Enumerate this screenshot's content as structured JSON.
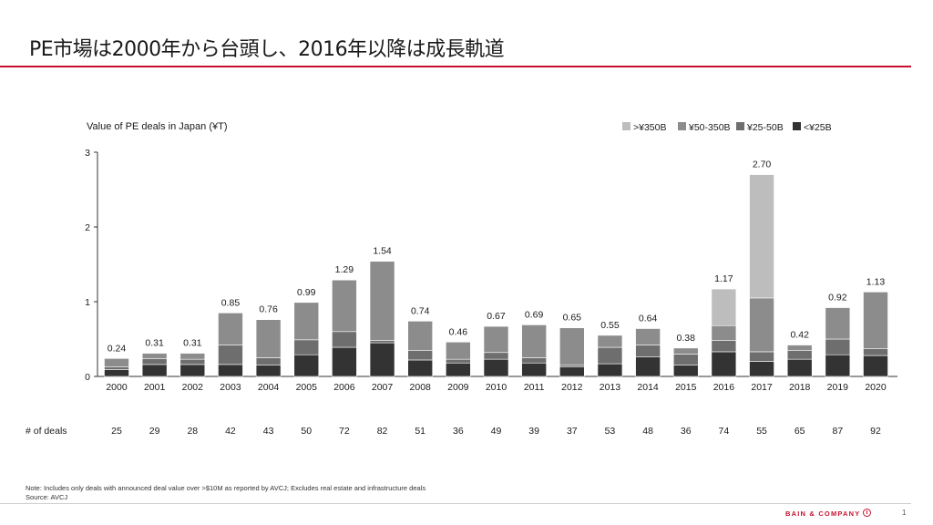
{
  "slide": {
    "title": "PE市場は2000年から台頭し、2016年以降は成長軌道",
    "note": "Note: Includes only deals with announced deal value over >$10M as reported by AVCJ; Excludes real estate and infrastructure deals",
    "source": "Source: AVCJ",
    "brand": "BAIN & COMPANY",
    "page_number": "1"
  },
  "chart_data": {
    "type": "bar",
    "stacked": true,
    "title": "Value of PE deals in Japan (¥T)",
    "legend_position": "top-right",
    "ylim": [
      0,
      3
    ],
    "yticks": [
      "0",
      "1",
      "2",
      "3"
    ],
    "categories": [
      "2000",
      "2001",
      "2002",
      "2003",
      "2004",
      "2005",
      "2006",
      "2007",
      "2008",
      "2009",
      "2010",
      "2011",
      "2012",
      "2013",
      "2014",
      "2015",
      "2016",
      "2017",
      "2018",
      "2019",
      "2020"
    ],
    "totals": [
      "0.24",
      "0.31",
      "0.31",
      "0.85",
      "0.76",
      "0.99",
      "1.29",
      "1.54",
      "0.74",
      "0.46",
      "0.67",
      "0.69",
      "0.65",
      "0.55",
      "0.64",
      "0.38",
      "1.17",
      "2.70",
      "0.42",
      "0.92",
      "1.13"
    ],
    "series": [
      {
        "name": "<¥25B",
        "color": "#333333",
        "values": [
          0.09,
          0.16,
          0.16,
          0.16,
          0.15,
          0.29,
          0.39,
          0.45,
          0.22,
          0.18,
          0.23,
          0.18,
          0.13,
          0.17,
          0.26,
          0.15,
          0.33,
          0.2,
          0.23,
          0.29,
          0.28
        ]
      },
      {
        "name": "¥25-50B",
        "color": "#6e6e6e",
        "values": [
          0.04,
          0.08,
          0.07,
          0.26,
          0.1,
          0.2,
          0.21,
          0.03,
          0.13,
          0.05,
          0.09,
          0.07,
          0.02,
          0.22,
          0.16,
          0.15,
          0.15,
          0.13,
          0.12,
          0.21,
          0.09
        ]
      },
      {
        "name": "¥50-350B",
        "color": "#8c8c8c",
        "values": [
          0.11,
          0.07,
          0.08,
          0.43,
          0.51,
          0.5,
          0.69,
          1.06,
          0.39,
          0.23,
          0.35,
          0.44,
          0.5,
          0.16,
          0.22,
          0.08,
          0.2,
          0.72,
          0.07,
          0.42,
          0.76
        ]
      },
      {
        "name": ">¥350B",
        "color": "#bdbdbd",
        "values": [
          0,
          0,
          0,
          0,
          0,
          0,
          0,
          0,
          0,
          0,
          0,
          0,
          0,
          0,
          0,
          0,
          0.49,
          1.65,
          0,
          0,
          0
        ]
      }
    ]
  },
  "deals": {
    "label": "# of deals",
    "values": [
      "25",
      "29",
      "28",
      "42",
      "43",
      "50",
      "72",
      "82",
      "51",
      "36",
      "49",
      "39",
      "37",
      "53",
      "48",
      "36",
      "74",
      "55",
      "65",
      "87",
      "92"
    ]
  }
}
